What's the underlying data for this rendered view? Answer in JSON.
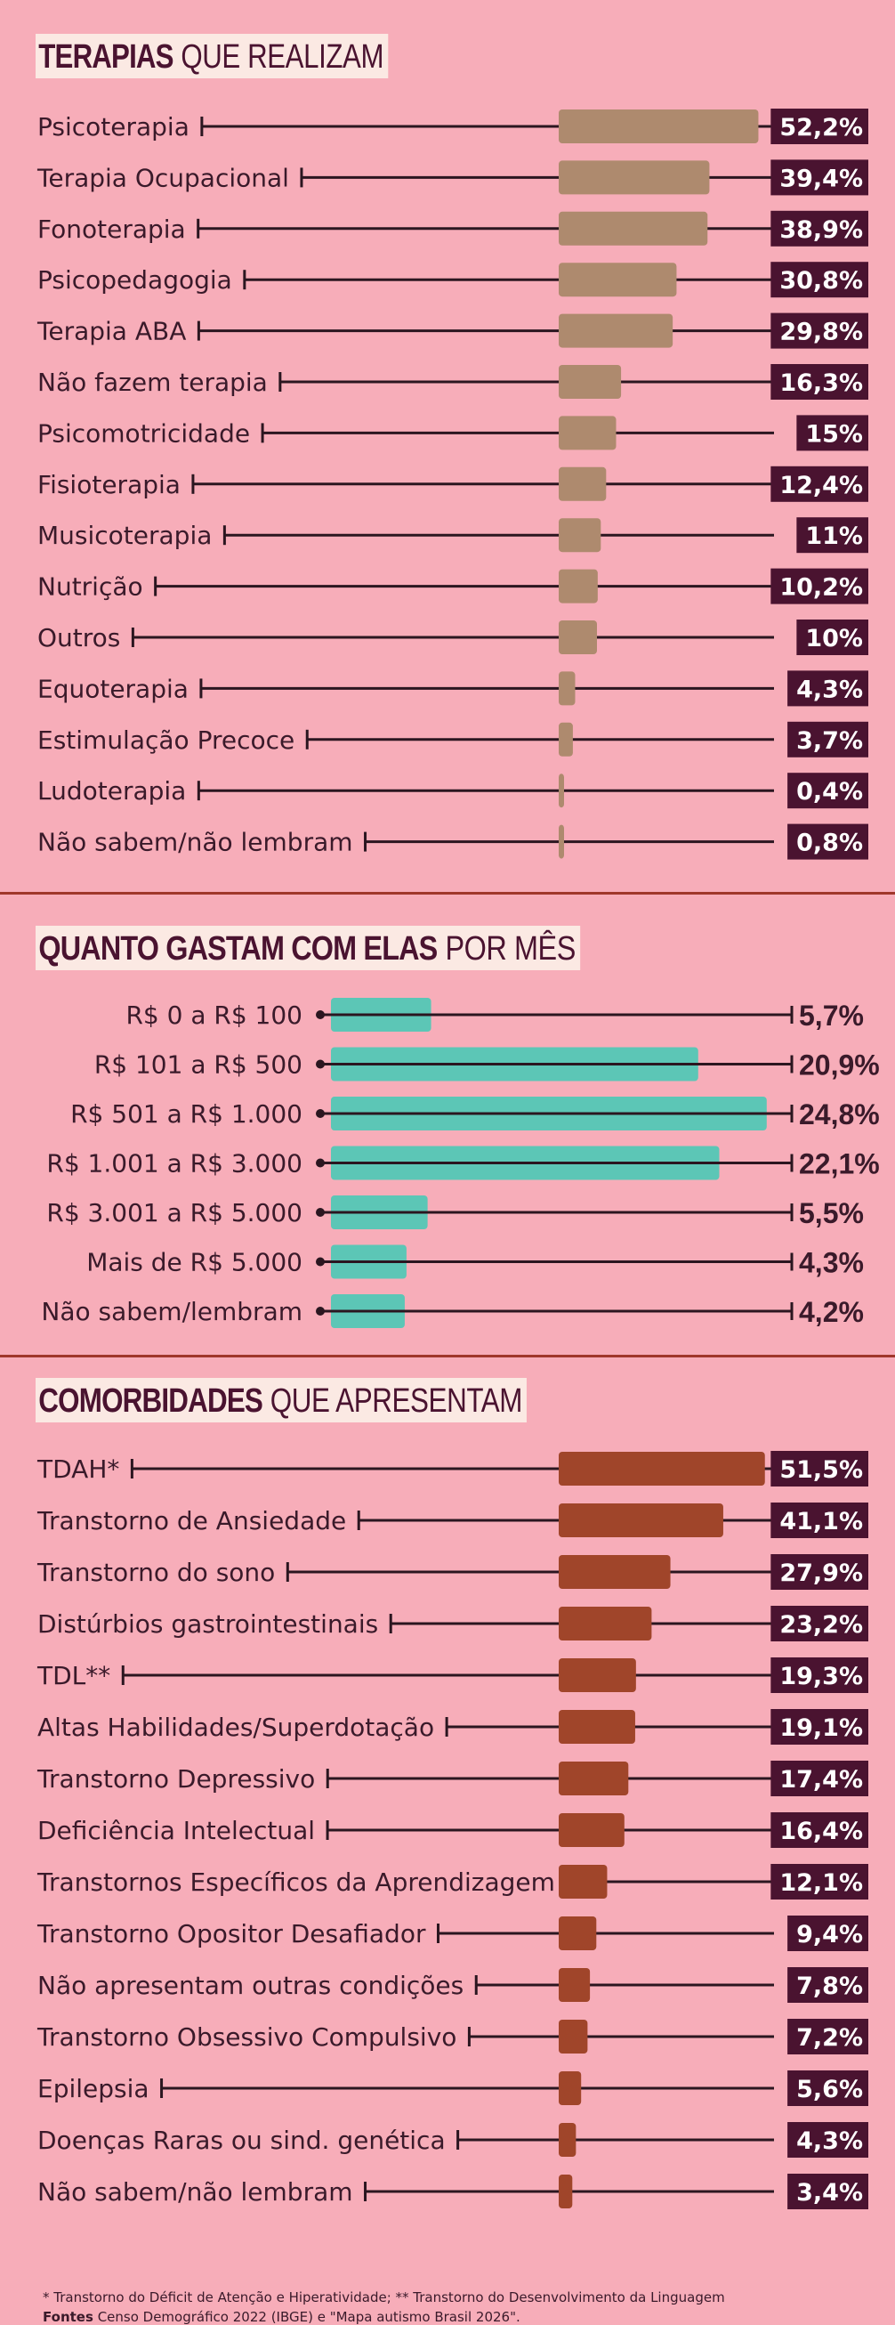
{
  "colors": {
    "background": "#f7adb9",
    "therapy_bar": "#ae8a6e",
    "spending_bar": "#5cc6b6",
    "comorbidity_bar": "#a0452a",
    "value_box": "#4a1330",
    "divider": "#a0372b",
    "line": "#2b1620"
  },
  "sections": {
    "therapies": {
      "title_bold": "TERAPIAS",
      "title_light": "QUE REALIZAM"
    },
    "spending": {
      "title_bold": "QUANTO GASTAM COM ELAS",
      "title_light": "POR MÊS"
    },
    "comorbidities": {
      "title_bold": "COMORBIDADES",
      "title_light": "QUE APRESENTAM"
    }
  },
  "chart_data": [
    {
      "type": "bar",
      "orientation": "horizontal",
      "categories": [
        "Psicoterapia",
        "Terapia Ocupacional",
        "Fonoterapia",
        "Psicopedagogia",
        "Terapia ABA",
        "Não fazem terapia",
        "Psicomotricidade",
        "Fisioterapia",
        "Musicoterapia",
        "Nutrição",
        "Outros",
        "Equoterapia",
        "Estimulação Precoce",
        "Ludoterapia",
        "Não sabem/não lembram"
      ],
      "values": [
        52.2,
        39.4,
        38.9,
        30.8,
        29.8,
        16.3,
        15,
        12.4,
        11,
        10.2,
        10,
        4.3,
        3.7,
        0.4,
        0.8
      ],
      "value_labels": [
        "52,2%",
        "39,4%",
        "38,9%",
        "30,8%",
        "29,8%",
        "16,3%",
        "15%",
        "12,4%",
        "11%",
        "10,2%",
        "10%",
        "4,3%",
        "3,7%",
        "0,4%",
        "0,8%"
      ]
    },
    {
      "type": "bar",
      "orientation": "horizontal",
      "categories": [
        "R$ 0 a R$ 100",
        "R$ 101 a R$ 500",
        "R$ 501 a R$ 1.000",
        "R$ 1.001 a R$ 3.000",
        "R$ 3.001 a R$ 5.000",
        "Mais de R$ 5.000",
        "Não sabem/lembram"
      ],
      "values": [
        5.7,
        20.9,
        24.8,
        22.1,
        5.5,
        4.3,
        4.2
      ],
      "value_labels": [
        "5,7%",
        "20,9%",
        "24,8%",
        "22,1%",
        "5,5%",
        "4,3%",
        "4,2%"
      ]
    },
    {
      "type": "bar",
      "orientation": "horizontal",
      "categories": [
        "TDAH*",
        "Transtorno de Ansiedade",
        "Transtorno do sono",
        "Distúrbios gastrointestinais",
        "TDL**",
        "Altas Habilidades/Superdotação",
        "Transtorno Depressivo",
        "Deficiência Intelectual",
        "Transtornos Específicos da Aprendizagem",
        "Transtorno Opositor Desafiador",
        "Não apresentam outras condições",
        "Transtorno Obsessivo Compulsivo",
        "Epilepsia",
        "Doenças Raras ou sind. genética",
        "Não sabem/não lembram"
      ],
      "values": [
        51.5,
        41.1,
        27.9,
        23.2,
        19.3,
        19.1,
        17.4,
        16.4,
        12.1,
        9.4,
        7.8,
        7.2,
        5.6,
        4.3,
        3.4
      ],
      "value_labels": [
        "51,5%",
        "41,1%",
        "27,9%",
        "23,2%",
        "19,3%",
        "19,1%",
        "17,4%",
        "16,4%",
        "12,1%",
        "9,4%",
        "7,8%",
        "7,2%",
        "5,6%",
        "4,3%",
        "3,4%"
      ]
    }
  ],
  "footnote": "* Transtorno do Déficit de Atenção e Hiperatividade; ** Transtorno do Desenvolvimento da Linguagem",
  "source": {
    "label": "Fontes",
    "text": "Censo Demográfico 2022 (IBGE) e \"Mapa autismo Brasil 2026\"."
  }
}
